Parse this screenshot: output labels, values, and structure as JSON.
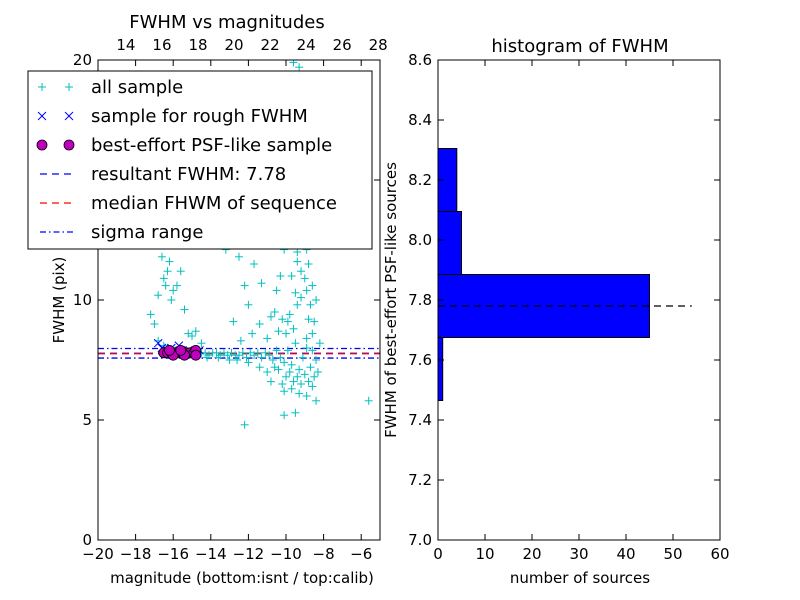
{
  "chart_data": [
    {
      "type": "scatter",
      "title": "FWHM vs magnitudes",
      "xlabel": "magnitude (bottom:isnt / top:calib)",
      "ylabel": "FWHM (pix)",
      "xlim": [
        -20,
        -5
      ],
      "ylim": [
        0,
        20
      ],
      "x_ticks": [
        "−20",
        "−18",
        "−16",
        "−14",
        "−12",
        "−10",
        "−8",
        "−6"
      ],
      "x_tick_values": [
        -20,
        -18,
        -16,
        -14,
        -12,
        -10,
        -8,
        -6
      ],
      "y_ticks": [
        "0",
        "5",
        "10",
        "15",
        "20"
      ],
      "y_tick_values": [
        0,
        5,
        10,
        15,
        20
      ],
      "top_axis": {
        "ticks": [
          "14",
          "16",
          "18",
          "20",
          "22",
          "24",
          "26",
          "28"
        ],
        "values": [
          14,
          16,
          18,
          20,
          22,
          24,
          26,
          28
        ],
        "xlim": [
          12.45,
          28.1
        ]
      },
      "legend": {
        "placement": "upper-left",
        "entries": [
          {
            "label": "all sample",
            "marker": "plus",
            "color": "#00bfbf"
          },
          {
            "label": "sample for rough FWHM",
            "marker": "x",
            "color": "#0000ff"
          },
          {
            "label": "best-effort PSF-like sample",
            "marker": "circle",
            "color": "#bf00bf"
          },
          {
            "label": "resultant FWHM: 7.78",
            "marker": "dashed",
            "color": "#0000ff"
          },
          {
            "label": "median FHWM of sequence",
            "marker": "dashed",
            "color": "#ff0000"
          },
          {
            "label": "sigma range",
            "marker": "dashdot",
            "color": "#0000ff"
          }
        ]
      },
      "hlines": [
        {
          "name": "resultant FWHM: 7.78",
          "y": 7.78,
          "style": "dashed",
          "color": "#0000ff"
        },
        {
          "name": "median FHWM of sequence",
          "y": 7.76,
          "style": "dashed",
          "color": "#ff0000"
        },
        {
          "name": "sigma range",
          "y": 7.98,
          "style": "dashdot",
          "color": "#0000ff"
        },
        {
          "name": "sigma range",
          "y": 7.58,
          "style": "dashdot",
          "color": "#0000ff"
        }
      ],
      "series": [
        {
          "name": "all sample",
          "marker": "plus",
          "color": "#00bfbf",
          "points": [
            [
              -17.2,
              9.4
            ],
            [
              -16.8,
              10.2
            ],
            [
              -16.5,
              10.9
            ],
            [
              -16.3,
              11.2
            ],
            [
              -16.2,
              11.6
            ],
            [
              -16.1,
              10.0
            ],
            [
              -15.8,
              10.6
            ],
            [
              -15.6,
              11.2
            ],
            [
              -15.4,
              9.6
            ],
            [
              -15.2,
              8.6
            ],
            [
              -15.0,
              8.5
            ],
            [
              -14.8,
              8.7
            ],
            [
              -14.5,
              8.2
            ],
            [
              -15.1,
              12.4
            ],
            [
              -16.6,
              11.8
            ],
            [
              -16.0,
              10.4
            ],
            [
              -16.4,
              10.6
            ],
            [
              -17.0,
              9.0
            ],
            [
              -16.8,
              8.3
            ],
            [
              -16.5,
              8.1
            ],
            [
              -16.3,
              8.0
            ],
            [
              -16.1,
              7.9
            ],
            [
              -15.9,
              7.9
            ],
            [
              -15.7,
              7.8
            ],
            [
              -15.5,
              7.8
            ],
            [
              -15.3,
              7.8
            ],
            [
              -15.1,
              7.8
            ],
            [
              -14.9,
              7.8
            ],
            [
              -14.7,
              7.8
            ],
            [
              -14.5,
              7.8
            ],
            [
              -14.3,
              7.8
            ],
            [
              -14.1,
              7.7
            ],
            [
              -13.9,
              7.8
            ],
            [
              -13.7,
              7.8
            ],
            [
              -13.5,
              7.7
            ],
            [
              -13.3,
              7.8
            ],
            [
              -13.1,
              7.7
            ],
            [
              -12.9,
              7.8
            ],
            [
              -12.7,
              7.7
            ],
            [
              -12.5,
              7.7
            ],
            [
              -12.3,
              7.8
            ],
            [
              -12.1,
              7.6
            ],
            [
              -11.9,
              7.8
            ],
            [
              -11.7,
              7.7
            ],
            [
              -11.5,
              7.8
            ],
            [
              -11.3,
              7.6
            ],
            [
              -11.1,
              7.8
            ],
            [
              -10.9,
              7.7
            ],
            [
              -10.7,
              7.5
            ],
            [
              -10.5,
              7.9
            ],
            [
              -10.3,
              7.6
            ],
            [
              -10.1,
              7.4
            ],
            [
              -9.9,
              7.9
            ],
            [
              -9.7,
              7.3
            ],
            [
              -9.5,
              8.2
            ],
            [
              -9.3,
              7.1
            ],
            [
              -9.1,
              7.6
            ],
            [
              -8.9,
              8.0
            ],
            [
              -8.7,
              7.2
            ],
            [
              -8.5,
              6.8
            ],
            [
              -8.6,
              7.9
            ],
            [
              -8.8,
              6.6
            ],
            [
              -9.0,
              6.9
            ],
            [
              -9.2,
              6.5
            ],
            [
              -9.4,
              6.8
            ],
            [
              -9.6,
              6.6
            ],
            [
              -9.8,
              7.0
            ],
            [
              -10.0,
              6.8
            ],
            [
              -10.2,
              6.5
            ],
            [
              -10.4,
              7.1
            ],
            [
              -8.4,
              7.5
            ],
            [
              -8.3,
              7.0
            ],
            [
              -8.2,
              8.2
            ],
            [
              -8.6,
              8.6
            ],
            [
              -8.8,
              9.2
            ],
            [
              -8.7,
              9.8
            ],
            [
              -8.9,
              10.4
            ],
            [
              -9.0,
              10.9
            ],
            [
              -8.8,
              11.5
            ],
            [
              -8.9,
              12.1
            ],
            [
              -9.1,
              12.7
            ],
            [
              -9.0,
              13.2
            ],
            [
              -9.2,
              13.9
            ],
            [
              -9.0,
              14.4
            ],
            [
              -9.1,
              15.2
            ],
            [
              -9.3,
              15.9
            ],
            [
              -9.0,
              16.6
            ],
            [
              -9.2,
              17.4
            ],
            [
              -9.1,
              18.3
            ],
            [
              -9.4,
              19.0
            ],
            [
              -9.3,
              19.7
            ],
            [
              -9.6,
              19.9
            ],
            [
              -9.0,
              19.2
            ],
            [
              -8.8,
              17.0
            ],
            [
              -8.7,
              14.6
            ],
            [
              -8.6,
              12.3
            ],
            [
              -8.6,
              10.6
            ],
            [
              -9.4,
              12.0
            ],
            [
              -9.5,
              10.3
            ],
            [
              -9.7,
              11.0
            ],
            [
              -9.8,
              9.4
            ],
            [
              -9.6,
              8.8
            ],
            [
              -9.9,
              9.1
            ],
            [
              -10.0,
              8.6
            ],
            [
              -10.2,
              9.2
            ],
            [
              -10.4,
              8.7
            ],
            [
              -10.6,
              9.5
            ],
            [
              -10.8,
              9.3
            ],
            [
              -11.0,
              8.4
            ],
            [
              -10.5,
              10.4
            ],
            [
              -10.3,
              11.0
            ],
            [
              -11.3,
              10.7
            ],
            [
              -11.7,
              11.5
            ],
            [
              -12.2,
              10.6
            ],
            [
              -12.5,
              11.8
            ],
            [
              -10.9,
              13.0
            ],
            [
              -11.1,
              14.2
            ],
            [
              -11.6,
              12.3
            ],
            [
              -12.0,
              9.8
            ],
            [
              -13.2,
              12.1
            ],
            [
              -13.8,
              12.4
            ],
            [
              -12.8,
              9.1
            ],
            [
              -11.4,
              9.0
            ],
            [
              -11.8,
              8.6
            ],
            [
              -12.4,
              8.3
            ],
            [
              -9.4,
              9.8
            ],
            [
              -9.2,
              10.1
            ],
            [
              -8.9,
              8.4
            ],
            [
              -8.5,
              9.1
            ],
            [
              -8.4,
              10.0
            ],
            [
              -9.8,
              12.8
            ],
            [
              -10.1,
              12.1
            ],
            [
              -9.5,
              14.4
            ],
            [
              -9.3,
              13.5
            ],
            [
              -9.7,
              15.3
            ],
            [
              -10.4,
              12.6
            ],
            [
              -9.6,
              17.8
            ],
            [
              -10.2,
              16.5
            ],
            [
              -9.9,
              18.6
            ],
            [
              -9.2,
              11.2
            ],
            [
              -9.4,
              11.6
            ],
            [
              -9.6,
              12.3
            ],
            [
              -8.9,
              13.7
            ],
            [
              -8.7,
              15.6
            ],
            [
              -8.8,
              16.2
            ],
            [
              -10.1,
              6.2
            ],
            [
              -9.7,
              6.3
            ],
            [
              -9.3,
              6.1
            ],
            [
              -8.9,
              6.0
            ],
            [
              -8.6,
              6.4
            ],
            [
              -9.5,
              5.3
            ],
            [
              -10.1,
              5.2
            ],
            [
              -12.2,
              4.8
            ],
            [
              -8.4,
              5.8
            ],
            [
              -5.6,
              5.8
            ],
            [
              -10.6,
              7.2
            ],
            [
              -11.0,
              7.0
            ],
            [
              -10.8,
              6.6
            ],
            [
              -11.4,
              7.2
            ],
            [
              -12.0,
              7.4
            ],
            [
              -12.6,
              7.5
            ],
            [
              -13.0,
              7.5
            ],
            [
              -13.6,
              7.6
            ],
            [
              -14.2,
              7.6
            ],
            [
              -14.8,
              7.7
            ]
          ]
        },
        {
          "name": "sample for rough FWHM",
          "marker": "x",
          "color": "#0000ff",
          "points": [
            [
              -16.8,
              8.2
            ],
            [
              -16.6,
              8.0
            ],
            [
              -16.3,
              7.9
            ],
            [
              -16.0,
              7.9
            ],
            [
              -15.7,
              8.1
            ],
            [
              -16.1,
              8.0
            ],
            [
              -15.5,
              7.9
            ],
            [
              -15.2,
              7.9
            ],
            [
              -15.0,
              7.8
            ],
            [
              -14.8,
              7.8
            ],
            [
              -14.6,
              7.9
            ],
            [
              -16.4,
              7.8
            ],
            [
              -15.9,
              7.8
            ]
          ]
        },
        {
          "name": "best-effort PSF-like sample",
          "marker": "circle",
          "color": "#bf00bf",
          "points": [
            [
              -16.5,
              7.8
            ],
            [
              -16.3,
              7.8
            ],
            [
              -16.1,
              7.8
            ],
            [
              -15.9,
              7.8
            ],
            [
              -15.7,
              7.8
            ],
            [
              -15.5,
              7.8
            ],
            [
              -15.3,
              7.8
            ],
            [
              -15.1,
              7.8
            ],
            [
              -14.9,
              7.8
            ],
            [
              -14.8,
              7.9
            ],
            [
              -14.8,
              7.7
            ],
            [
              -15.4,
              7.7
            ],
            [
              -16.0,
              7.7
            ],
            [
              -15.6,
              7.9
            ],
            [
              -16.2,
              7.9
            ]
          ]
        }
      ]
    },
    {
      "type": "bar",
      "orientation": "horizontal",
      "title": "histogram of FWHM",
      "xlabel": "number of sources",
      "ylabel": "FWHM of best-effort PSF-like sources",
      "xlim": [
        0,
        60
      ],
      "ylim": [
        7.0,
        8.6
      ],
      "x_ticks": [
        "0",
        "10",
        "20",
        "30",
        "40",
        "50",
        "60"
      ],
      "x_tick_values": [
        0,
        10,
        20,
        30,
        40,
        50,
        60
      ],
      "y_ticks": [
        "7.0",
        "7.2",
        "7.4",
        "7.6",
        "7.8",
        "8.0",
        "8.2",
        "8.4",
        "8.6"
      ],
      "y_tick_values": [
        7.0,
        7.2,
        7.4,
        7.6,
        7.8,
        8.0,
        8.2,
        8.4,
        8.6
      ],
      "bar_color": "#0000ff",
      "bins": [
        {
          "y0": 7.465,
          "y1": 7.675,
          "count": 1
        },
        {
          "y0": 7.675,
          "y1": 7.885,
          "count": 45
        },
        {
          "y0": 7.885,
          "y1": 8.095,
          "count": 5
        },
        {
          "y0": 8.095,
          "y1": 8.305,
          "count": 4
        }
      ],
      "reference_line": {
        "y": 7.78,
        "x_range": [
          0,
          54
        ],
        "style": "dashed",
        "color": "#000000"
      }
    }
  ]
}
